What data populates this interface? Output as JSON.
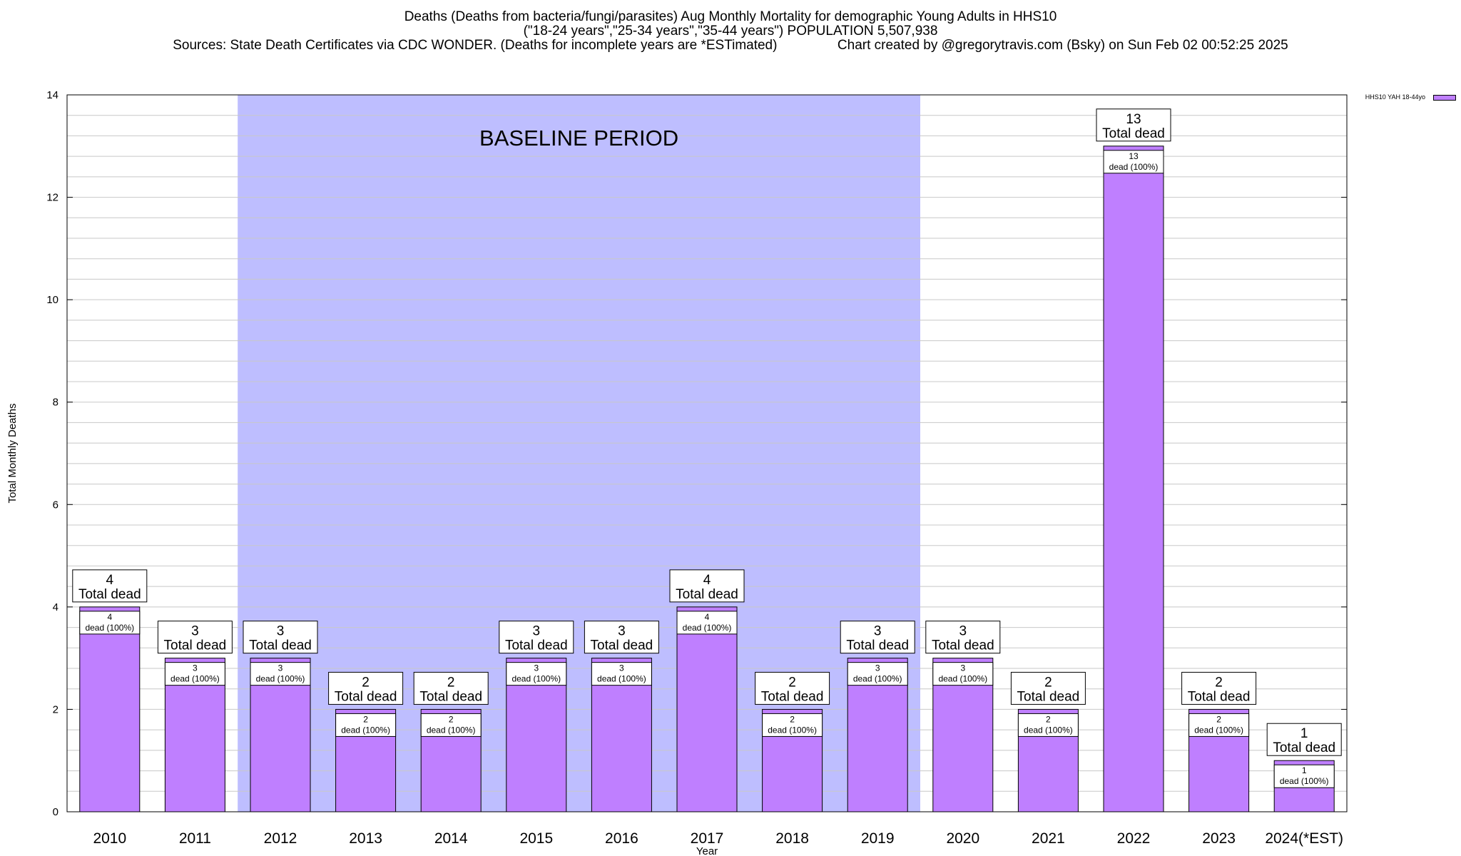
{
  "title_lines": [
    "Deaths (Deaths from bacteria/fungi/parasites) Aug Monthly Mortality for demographic Young Adults in HHS10",
    "(\"18-24 years\",\"25-34 years\",\"35-44 years\") POPULATION 5,507,938",
    "Sources: State Death Certificates via CDC WONDER. (Deaths for incomplete years are *ESTimated)                Chart created by @gregorytravis.com (Bsky) on Sun Feb 02 00:52:25 2025"
  ],
  "legend": {
    "label": "HHS10 YAH 18-44yo",
    "color": "#bf7fff"
  },
  "colors": {
    "bar": "#bf7fff",
    "baseline": "#bebeff",
    "grid": "#c8c8c8"
  },
  "chart_data": {
    "type": "bar",
    "title": "Deaths (Deaths from bacteria/fungi/parasites) Aug Monthly Mortality for demographic Young Adults in HHS10",
    "xlabel": "Year",
    "ylabel": "Total Monthly Deaths",
    "ylim": [
      0,
      14
    ],
    "yticks": [
      0,
      2,
      4,
      6,
      8,
      10,
      12,
      14
    ],
    "grid": true,
    "legend_position": "top-right",
    "categories": [
      "2010",
      "2011",
      "2012",
      "2013",
      "2014",
      "2015",
      "2016",
      "2017",
      "2018",
      "2019",
      "2020",
      "2021",
      "2022",
      "2023",
      "2024(*EST)"
    ],
    "series": [
      {
        "name": "HHS10 YAH 18-44yo",
        "values": [
          4,
          3,
          3,
          2,
          2,
          3,
          3,
          4,
          2,
          3,
          3,
          2,
          13,
          2,
          1
        ]
      }
    ],
    "total_label": "Total dead",
    "inner_label": "dead (100%)",
    "baseline_period": {
      "label": "BASELINE PERIOD",
      "from": "2012",
      "to": "2019"
    }
  }
}
